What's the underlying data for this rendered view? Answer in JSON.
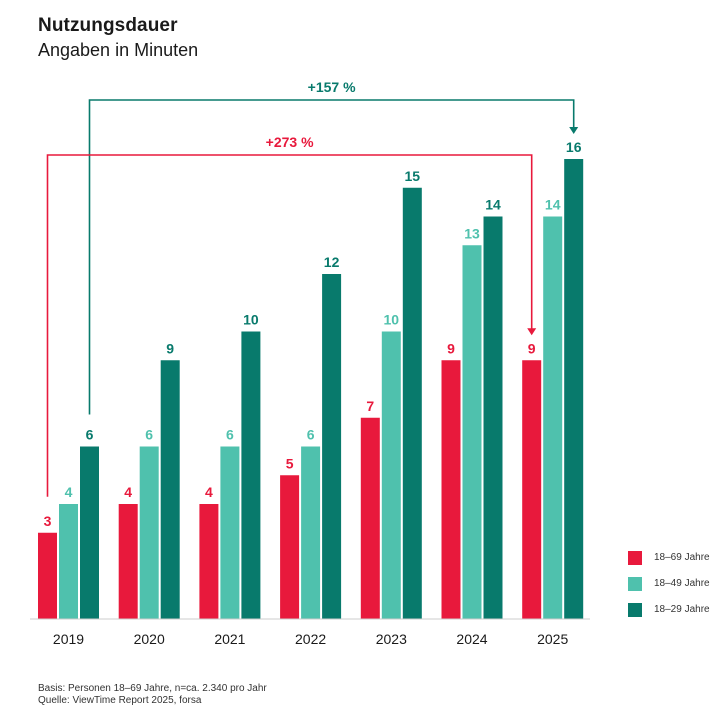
{
  "colors": {
    "red": "#e8193c",
    "mint": "#4fc1ad",
    "teal": "#087a6c"
  },
  "chart_data": {
    "type": "bar",
    "title": "Nutzungsdauer",
    "subtitle": "Angaben in Minuten",
    "xlabel": "",
    "ylabel": "",
    "ylim": [
      0,
      16
    ],
    "grid": false,
    "legend_position": "bottom-right",
    "categories": [
      "2019",
      "2020",
      "2021",
      "2022",
      "2023",
      "2024",
      "2025"
    ],
    "series": [
      {
        "name": "18–69 Jahre",
        "color": "#e8193c",
        "values": [
          3,
          4,
          4,
          5,
          7,
          9,
          9
        ]
      },
      {
        "name": "18–49 Jahre",
        "color": "#4fc1ad",
        "values": [
          4,
          6,
          6,
          6,
          10,
          13,
          14
        ]
      },
      {
        "name": "18–29 Jahre",
        "color": "#087a6c",
        "values": [
          6,
          9,
          10,
          12,
          15,
          14,
          16
        ]
      }
    ],
    "annotations": [
      {
        "label": "+157 %",
        "series": 2,
        "from": "2019",
        "to": "2025",
        "color": "#087a6c"
      },
      {
        "label": "+273 %",
        "series": 0,
        "from": "2019",
        "to": "2025",
        "color": "#e8193c"
      }
    ]
  },
  "legend": [
    {
      "label": "18–69 Jahre",
      "color": "#e8193c"
    },
    {
      "label": "18–49 Jahre",
      "color": "#4fc1ad"
    },
    {
      "label": "18–29 Jahre",
      "color": "#087a6c"
    }
  ],
  "footer": {
    "line1": "Basis: Personen 18–69 Jahre, n=ca. 2.340 pro Jahr",
    "line2": "Quelle: ViewTime Report 2025, forsa"
  }
}
